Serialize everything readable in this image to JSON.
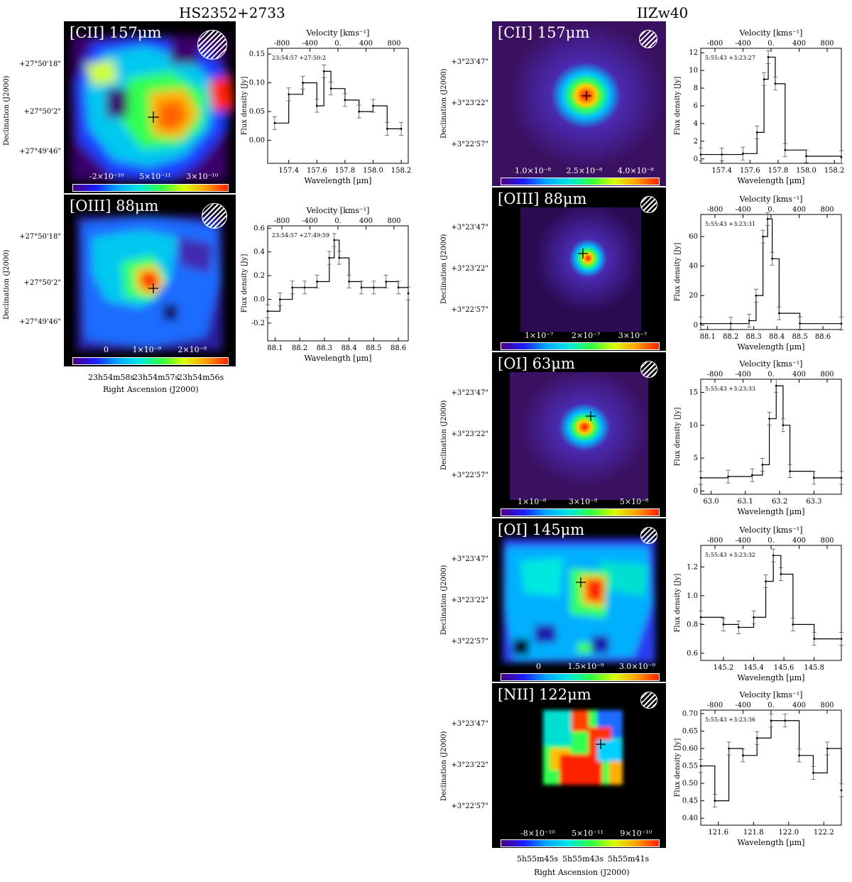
{
  "titles": {
    "left": "HS2352+2733",
    "right": "IIZw40"
  },
  "axis_labels": {
    "declination": "Declination (J2000)",
    "right_ascension": "Right Ascension (J2000)",
    "velocity": "Velocity [kms⁻¹]",
    "wavelength": "Wavelength [μm]",
    "flux": "Flux density [Jy]"
  },
  "hs_dec_ticks": [
    "+27°50'18\"",
    "+27°50'2\"",
    "+27°49'46\""
  ],
  "hs_ra_ticks": [
    "23h54m58s",
    "23h54m57s",
    "23h54m56s"
  ],
  "iz_dec_ticks": [
    "+3°23'47\"",
    "+3°23'22\"",
    "+3°22'57\""
  ],
  "iz_ra_ticks": [
    "5h55m45s",
    "5h55m43s",
    "5h55m41s"
  ],
  "panels": [
    {
      "id": "hs-cii",
      "ion": "[CII] 157μm",
      "cbar": [
        "-2×10⁻¹⁰",
        "5×10⁻¹¹",
        "3×10⁻¹⁰"
      ],
      "coord": "23:54:57 +27:50:2",
      "spec": {
        "xticks": [
          "157.4",
          "157.6",
          "157.8",
          "158.0",
          "158.2"
        ],
        "yticks": [
          "0.00",
          "0.05",
          "0.10",
          "0.15"
        ],
        "vticks": [
          "-800",
          "-400",
          "0.",
          "400",
          "800"
        ]
      }
    },
    {
      "id": "hs-oiii",
      "ion": "[OIII] 88μm",
      "cbar": [
        "0",
        "1×10⁻⁹",
        "2×10⁻⁹"
      ],
      "coord": "23:54:57 +27:49:59",
      "spec": {
        "xticks": [
          "88.1",
          "88.2",
          "88.3",
          "88.4",
          "88.5",
          "88.6"
        ],
        "yticks": [
          "-0.2",
          "0.0",
          "0.2",
          "0.4",
          "0.6"
        ],
        "vticks": [
          "-800",
          "-400",
          "0.",
          "400",
          "800"
        ]
      }
    },
    {
      "id": "iz-cii",
      "ion": "[CII] 157μm",
      "cbar": [
        "1.0×10⁻⁸",
        "2.5×10⁻⁸",
        "4.0×10⁻⁸"
      ],
      "coord": "5:55:43 +3:23:27",
      "spec": {
        "xticks": [
          "157.4",
          "157.6",
          "157.8",
          "158.0",
          "158.2"
        ],
        "yticks": [
          "0",
          "2",
          "4",
          "6",
          "8",
          "10",
          "12"
        ],
        "vticks": [
          "-800",
          "-400",
          "0.",
          "400",
          "800"
        ]
      }
    },
    {
      "id": "iz-oiii",
      "ion": "[OIII] 88μm",
      "cbar": [
        "1×10⁻⁷",
        "2×10⁻⁷",
        "3×10⁻⁷"
      ],
      "coord": "5:55:43 +3:23:31",
      "spec": {
        "xticks": [
          "88.1",
          "88.2",
          "88.3",
          "88.4",
          "88.5",
          "88.6"
        ],
        "yticks": [
          "0",
          "20",
          "40",
          "60"
        ],
        "vticks": [
          "-800",
          "-400",
          "0.",
          "400",
          "800"
        ]
      }
    },
    {
      "id": "iz-oi63",
      "ion": "[OI] 63μm",
      "cbar": [
        "1×10⁻⁸",
        "3×10⁻⁸",
        "5×10⁻⁸"
      ],
      "coord": "5:55:43 +3:23:33",
      "spec": {
        "xticks": [
          "63.0",
          "63.1",
          "63.2",
          "63.3"
        ],
        "yticks": [
          "0",
          "5",
          "10",
          "15"
        ],
        "vticks": [
          "-800",
          "-400",
          "0.",
          "400",
          "800"
        ]
      }
    },
    {
      "id": "iz-oi145",
      "ion": "[OI] 145μm",
      "cbar": [
        "0",
        "1.5×10⁻⁹",
        "3.0×10⁻⁹"
      ],
      "coord": "5:55:43 +3:23:32",
      "spec": {
        "xticks": [
          "145.2",
          "145.4",
          "145.6",
          "145.8"
        ],
        "yticks": [
          "0.6",
          "0.8",
          "1.0",
          "1.2"
        ],
        "vticks": [
          "-800",
          "-400",
          "0.",
          "400",
          "800"
        ]
      }
    },
    {
      "id": "iz-nii",
      "ion": "[NII] 122μm",
      "cbar": [
        "-8×10⁻¹⁰",
        "5×10⁻¹¹",
        "9×10⁻¹⁰"
      ],
      "coord": "5:55:43 +3:23:36",
      "spec": {
        "xticks": [
          "121.6",
          "121.8",
          "122.0",
          "122.2"
        ],
        "yticks": [
          "0.40",
          "0.45",
          "0.50",
          "0.55",
          "0.60",
          "0.65",
          "0.70"
        ],
        "vticks": [
          "-800",
          "-400",
          "0.",
          "400",
          "800"
        ]
      }
    }
  ],
  "chart_data": [
    {
      "type": "line",
      "panel": "hs-cii",
      "xlim": [
        157.25,
        158.25
      ],
      "ylim": [
        -0.04,
        0.16
      ],
      "x": [
        157.3,
        157.4,
        157.5,
        157.6,
        157.65,
        157.7,
        157.8,
        157.9,
        158.0,
        158.1,
        158.2
      ],
      "y": [
        0.03,
        0.08,
        0.1,
        0.06,
        0.12,
        0.09,
        0.07,
        0.05,
        0.06,
        0.02,
        0.02
      ]
    },
    {
      "type": "line",
      "panel": "hs-oiii",
      "xlim": [
        88.07,
        88.64
      ],
      "ylim": [
        -0.35,
        0.62
      ],
      "x": [
        88.07,
        88.12,
        88.17,
        88.22,
        88.27,
        88.32,
        88.34,
        88.36,
        88.4,
        88.45,
        88.5,
        88.55,
        88.6,
        88.64
      ],
      "y": [
        -0.1,
        0.0,
        0.1,
        0.1,
        0.15,
        0.35,
        0.5,
        0.35,
        0.15,
        0.1,
        0.1,
        0.15,
        0.1,
        0.05
      ]
    },
    {
      "type": "line",
      "panel": "iz-cii",
      "xlim": [
        157.25,
        158.25
      ],
      "ylim": [
        -0.5,
        12.5
      ],
      "x": [
        157.25,
        157.4,
        157.55,
        157.65,
        157.7,
        157.73,
        157.78,
        157.85,
        158.0,
        158.25
      ],
      "y": [
        0.5,
        0.5,
        0.6,
        3.0,
        9.0,
        11.5,
        8.5,
        1.0,
        0.3,
        0.2
      ]
    },
    {
      "type": "line",
      "panel": "iz-oiii",
      "xlim": [
        88.07,
        88.68
      ],
      "ylim": [
        -3,
        75
      ],
      "x": [
        88.07,
        88.2,
        88.28,
        88.31,
        88.34,
        88.36,
        88.38,
        88.41,
        88.5,
        88.68
      ],
      "y": [
        1,
        1,
        3,
        20,
        60,
        72,
        45,
        8,
        1,
        1
      ]
    },
    {
      "type": "line",
      "panel": "iz-oi63",
      "xlim": [
        62.97,
        63.38
      ],
      "ylim": [
        -0.5,
        17
      ],
      "x": [
        62.97,
        63.05,
        63.12,
        63.15,
        63.17,
        63.19,
        63.21,
        63.23,
        63.3,
        63.38
      ],
      "y": [
        2,
        2.2,
        2.4,
        4,
        11,
        16,
        10,
        3,
        2,
        2
      ]
    },
    {
      "type": "line",
      "panel": "iz-oi145",
      "xlim": [
        145.05,
        145.98
      ],
      "ylim": [
        0.55,
        1.35
      ],
      "x": [
        145.05,
        145.2,
        145.3,
        145.4,
        145.48,
        145.53,
        145.58,
        145.66,
        145.8,
        145.98
      ],
      "y": [
        0.85,
        0.8,
        0.78,
        0.85,
        1.1,
        1.28,
        1.15,
        0.8,
        0.7,
        0.7
      ]
    },
    {
      "type": "line",
      "panel": "iz-nii",
      "xlim": [
        121.5,
        122.3
      ],
      "ylim": [
        0.38,
        0.71
      ],
      "x": [
        121.5,
        121.58,
        121.66,
        121.74,
        121.82,
        121.9,
        121.98,
        122.06,
        122.14,
        122.22,
        122.3
      ],
      "y": [
        0.55,
        0.45,
        0.6,
        0.58,
        0.63,
        0.68,
        0.68,
        0.58,
        0.53,
        0.6,
        0.48
      ]
    }
  ]
}
